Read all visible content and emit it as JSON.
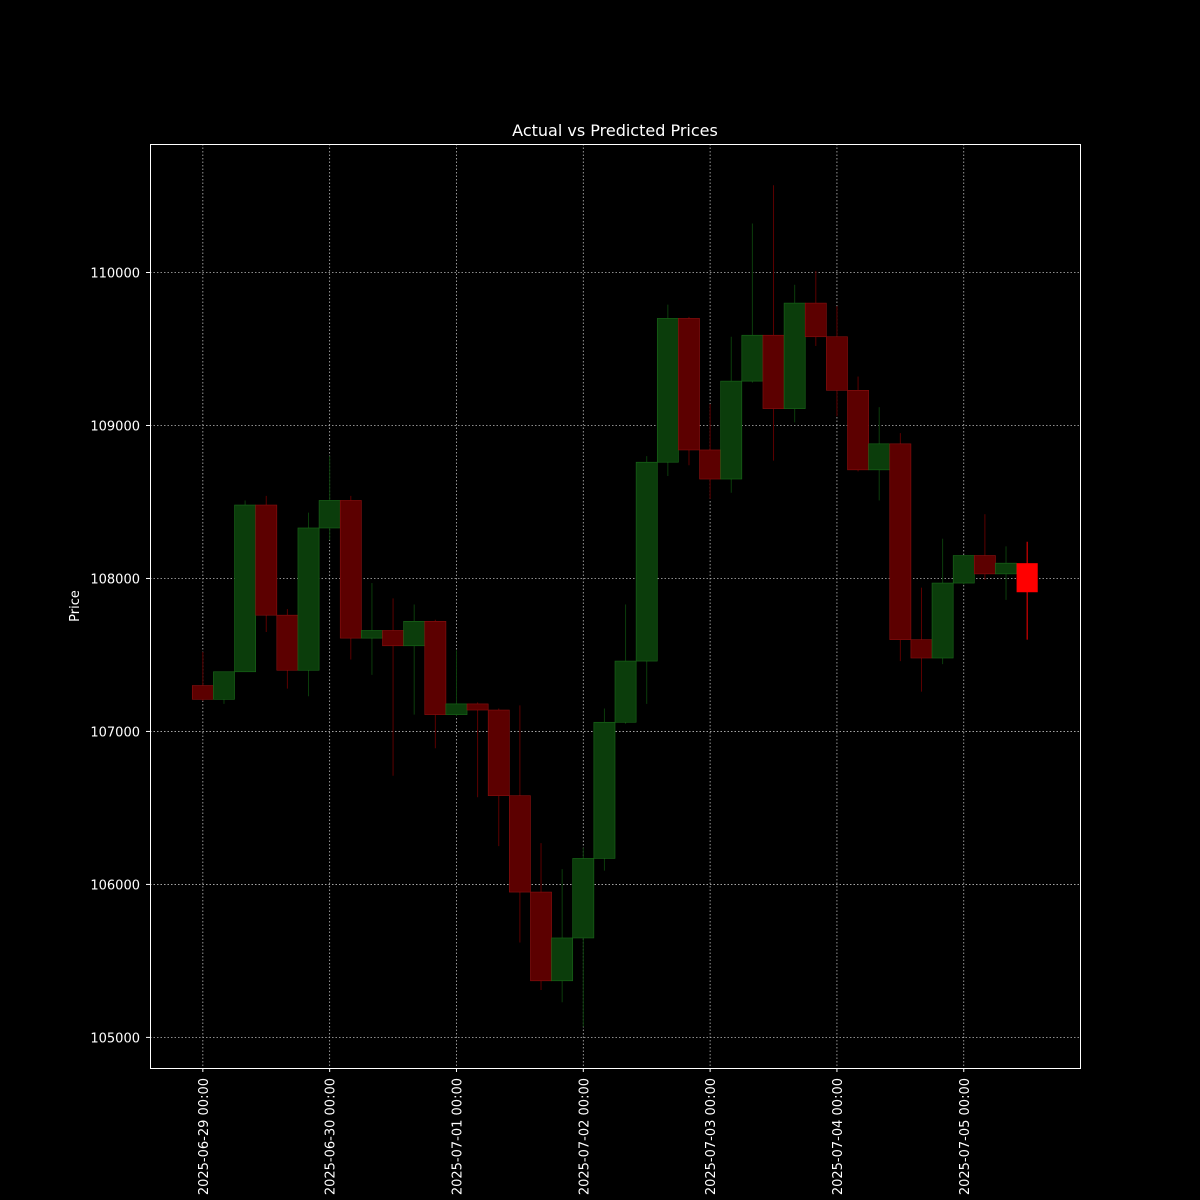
{
  "chart_data": {
    "type": "candlestick",
    "title": "Actual vs Predicted Prices",
    "ylabel": "Price",
    "x": [
      "2025-06-29 00:00",
      "2025-06-29 04:00",
      "2025-06-29 08:00",
      "2025-06-29 12:00",
      "2025-06-29 16:00",
      "2025-06-29 20:00",
      "2025-06-30 00:00",
      "2025-06-30 04:00",
      "2025-06-30 08:00",
      "2025-06-30 12:00",
      "2025-06-30 16:00",
      "2025-06-30 20:00",
      "2025-07-01 00:00",
      "2025-07-01 04:00",
      "2025-07-01 08:00",
      "2025-07-01 12:00",
      "2025-07-01 16:00",
      "2025-07-01 20:00",
      "2025-07-02 00:00",
      "2025-07-02 04:00",
      "2025-07-02 08:00",
      "2025-07-02 12:00",
      "2025-07-02 16:00",
      "2025-07-02 20:00",
      "2025-07-03 00:00",
      "2025-07-03 04:00",
      "2025-07-03 08:00",
      "2025-07-03 12:00",
      "2025-07-03 16:00",
      "2025-07-03 20:00",
      "2025-07-04 00:00",
      "2025-07-04 04:00",
      "2025-07-04 08:00",
      "2025-07-04 12:00",
      "2025-07-04 16:00",
      "2025-07-04 20:00",
      "2025-07-05 00:00",
      "2025-07-05 04:00",
      "2025-07-05 08:00"
    ],
    "open": [
      107300,
      107210,
      107390,
      108480,
      107760,
      107400,
      108330,
      108510,
      107610,
      107660,
      107560,
      107720,
      107110,
      107180,
      107140,
      106580,
      105950,
      105370,
      105650,
      106170,
      107060,
      107460,
      108760,
      109700,
      108840,
      108650,
      109290,
      109590,
      109110,
      109800,
      109580,
      109230,
      108710,
      108880,
      107600,
      107480,
      107970,
      108150,
      108030
    ],
    "high": [
      107520,
      107390,
      108510,
      108540,
      107800,
      108430,
      108800,
      108540,
      107970,
      107870,
      107830,
      107730,
      107530,
      107190,
      107150,
      107170,
      106270,
      106100,
      106240,
      107150,
      107830,
      108800,
      109790,
      109710,
      109140,
      109580,
      110320,
      110570,
      109920,
      110010,
      109780,
      109320,
      109120,
      108950,
      107940,
      108260,
      108150,
      108420,
      108210
    ],
    "low": [
      107200,
      107180,
      107390,
      107650,
      107280,
      107230,
      108250,
      107470,
      107370,
      106710,
      107110,
      106890,
      107100,
      106570,
      106250,
      105620,
      105310,
      105230,
      105070,
      106090,
      107050,
      107180,
      108670,
      108740,
      108520,
      108560,
      109280,
      108770,
      109020,
      109520,
      109060,
      108700,
      108510,
      107460,
      107260,
      107440,
      107960,
      107990,
      107860
    ],
    "close": [
      107210,
      107390,
      108480,
      107760,
      107400,
      108330,
      108510,
      107610,
      107660,
      107560,
      107720,
      107110,
      107180,
      107140,
      106580,
      105950,
      105370,
      105650,
      106170,
      107060,
      107460,
      108760,
      109700,
      108840,
      108650,
      109290,
      109590,
      109110,
      109800,
      109580,
      109230,
      108710,
      108880,
      107600,
      107480,
      107970,
      108150,
      108030,
      108100
    ],
    "up_color": "#0b3d0b",
    "down_color": "#5c0000",
    "predicted": {
      "x": [
        "2025-07-05 12:00"
      ],
      "open": [
        108100
      ],
      "high": [
        108240
      ],
      "low": [
        107600
      ],
      "close": [
        107910
      ],
      "color": "#ff0000"
    },
    "xlim": [
      "2025-06-28 14:00",
      "2025-07-05 22:00"
    ],
    "xticks": [
      "2025-06-29 00:00",
      "2025-06-30 00:00",
      "2025-07-01 00:00",
      "2025-07-02 00:00",
      "2025-07-03 00:00",
      "2025-07-04 00:00",
      "2025-07-05 00:00"
    ],
    "ylim": [
      104800,
      110840
    ],
    "yticks": [
      105000,
      106000,
      107000,
      108000,
      109000,
      110000
    ],
    "grid": true
  }
}
